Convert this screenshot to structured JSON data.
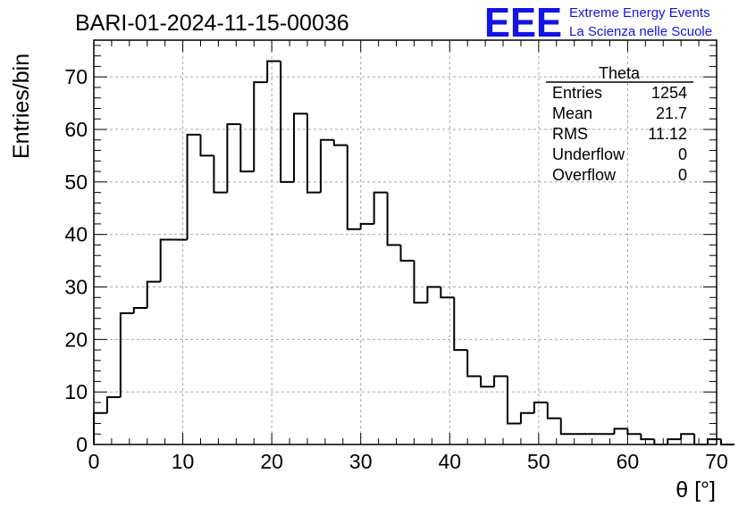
{
  "header": {
    "title": "BARI-01-2024-11-15-00036",
    "logo": {
      "mark": "EEE",
      "line1": "Extreme Energy Events",
      "line2": "La Scienza nelle Scuole",
      "color": "#1414e6"
    }
  },
  "stats_box": {
    "title": "Theta",
    "rows": [
      {
        "label": "Entries",
        "value": "1254"
      },
      {
        "label": "Mean",
        "value": "21.7"
      },
      {
        "label": "RMS",
        "value": "11.12"
      },
      {
        "label": "Underflow",
        "value": "0"
      },
      {
        "label": "Overflow",
        "value": "0"
      }
    ]
  },
  "chart_data": {
    "type": "bar",
    "style": "step-histogram",
    "xlabel": "θ [°]",
    "ylabel": "Entries/bin",
    "xlim": [
      0,
      70
    ],
    "ylim": [
      0,
      77
    ],
    "xticks": [
      0,
      10,
      20,
      30,
      40,
      50,
      60,
      70
    ],
    "yticks": [
      0,
      10,
      20,
      30,
      40,
      50,
      60,
      70
    ],
    "grid": true,
    "bin_width": 1.5,
    "bin_start": 0,
    "values": [
      6,
      9,
      25,
      26,
      31,
      39,
      39,
      59,
      55,
      48,
      61,
      52,
      69,
      73,
      50,
      63,
      48,
      58,
      57,
      41,
      42,
      48,
      38,
      35,
      27,
      30,
      28,
      18,
      13,
      11,
      13,
      4,
      6,
      8,
      5,
      2,
      2,
      2,
      2,
      3,
      2,
      1,
      0,
      1,
      2,
      0,
      1,
      0
    ]
  }
}
